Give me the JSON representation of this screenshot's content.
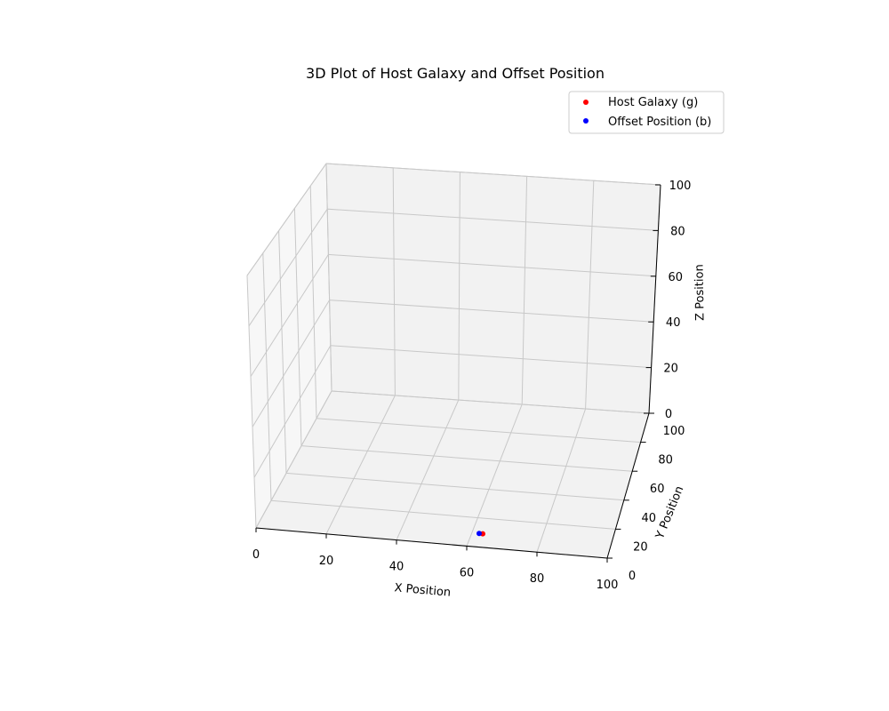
{
  "chart_data": {
    "type": "scatter",
    "title": "3D Plot of Host Galaxy and Offset Position",
    "xlabel": "X Position",
    "ylabel": "Y Position",
    "zlabel": "Z Position",
    "xlim": [
      0,
      100
    ],
    "ylim": [
      0,
      100
    ],
    "zlim": [
      0,
      100
    ],
    "x_ticks": [
      "0",
      "20",
      "40",
      "60",
      "80",
      "100"
    ],
    "y_ticks": [
      "0",
      "20",
      "40",
      "60",
      "80",
      "100"
    ],
    "z_ticks": [
      "0",
      "20",
      "40",
      "60",
      "80",
      "100"
    ],
    "grid": true,
    "legend_position": "top-right",
    "series": [
      {
        "name": "Host Galaxy (g)",
        "color": "#ff0000",
        "points": [
          {
            "x": 62.5,
            "y": 9.5,
            "z": 0
          }
        ]
      },
      {
        "name": "Offset Position (b)",
        "color": "#0000ff",
        "points": [
          {
            "x": 61.5,
            "y": 9.5,
            "z": 0
          }
        ]
      }
    ]
  }
}
